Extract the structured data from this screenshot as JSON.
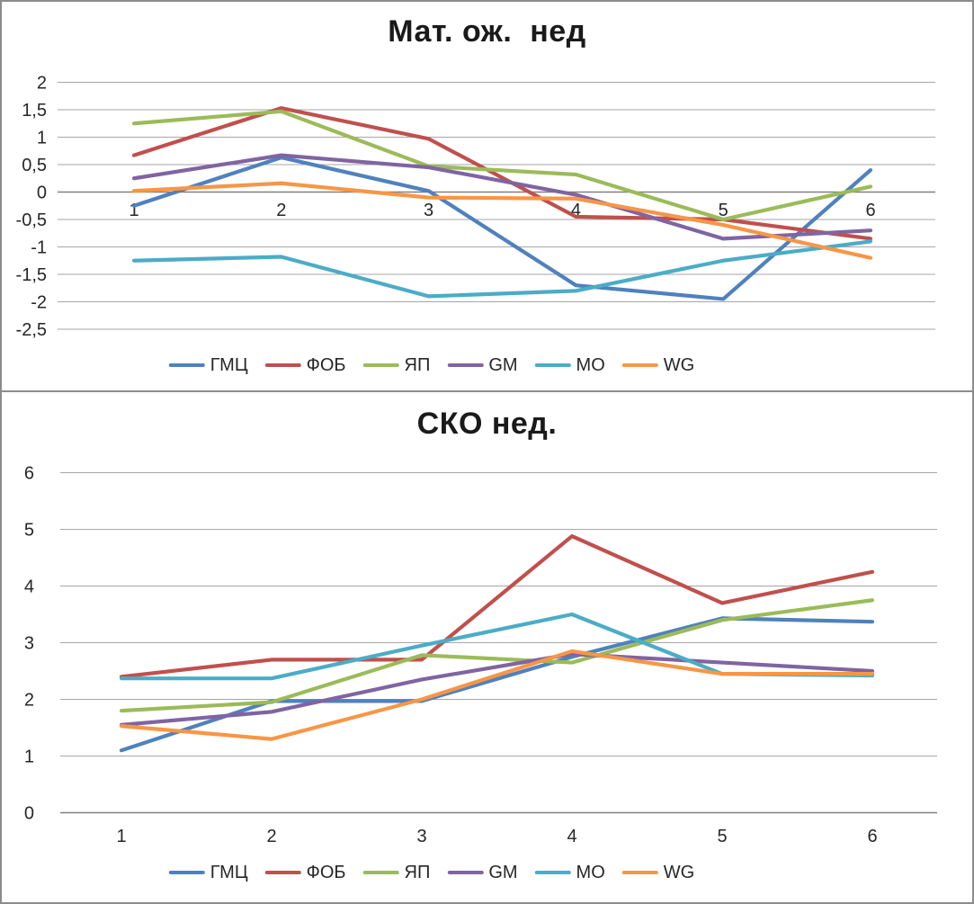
{
  "colors": {
    "grid": "#a6a6a6",
    "axis": "#808080",
    "tick_text": "#262626",
    "frame": "#8c8c8c",
    "background": "#ffffff"
  },
  "chart_data": [
    {
      "type": "line",
      "title": "Мат. ож.  нед",
      "xlabel": "",
      "ylabel": "",
      "categories": [
        "1",
        "2",
        "3",
        "4",
        "5",
        "6"
      ],
      "ylim": [
        -2.5,
        2
      ],
      "y_step": 0.5,
      "y_ticks": [
        "2",
        "1,5",
        "1",
        "0,5",
        "0",
        "-0,5",
        "-1",
        "-1,5",
        "-2",
        "-2,5"
      ],
      "grid": true,
      "legend_position": "bottom",
      "series": [
        {
          "name": "ГМЦ",
          "color": "#4F81BD",
          "values": [
            -0.25,
            0.63,
            0.02,
            -1.7,
            -1.95,
            0.4
          ]
        },
        {
          "name": "ФОБ",
          "color": "#C0504D",
          "values": [
            0.67,
            1.53,
            0.97,
            -0.45,
            -0.5,
            -0.85
          ]
        },
        {
          "name": "ЯП",
          "color": "#9BBB59",
          "values": [
            1.25,
            1.47,
            0.47,
            0.32,
            -0.5,
            0.1
          ]
        },
        {
          "name": "GM",
          "color": "#8064A2",
          "values": [
            0.25,
            0.67,
            0.45,
            -0.05,
            -0.85,
            -0.7
          ]
        },
        {
          "name": "МО",
          "color": "#4BACC6",
          "values": [
            -1.25,
            -1.18,
            -1.9,
            -1.8,
            -1.25,
            -0.9
          ]
        },
        {
          "name": "WG",
          "color": "#F79646",
          "values": [
            0.02,
            0.16,
            -0.1,
            -0.12,
            -0.6,
            -1.2
          ]
        }
      ]
    },
    {
      "type": "line",
      "title": "СКО нед.",
      "xlabel": "",
      "ylabel": "",
      "categories": [
        "1",
        "2",
        "3",
        "4",
        "5",
        "6"
      ],
      "ylim": [
        0,
        6
      ],
      "y_step": 1,
      "y_ticks": [
        "6",
        "5",
        "4",
        "3",
        "2",
        "1",
        "0"
      ],
      "grid": true,
      "legend_position": "bottom",
      "series": [
        {
          "name": "ГМЦ",
          "color": "#4F81BD",
          "values": [
            1.1,
            1.97,
            1.97,
            2.75,
            3.43,
            3.37
          ]
        },
        {
          "name": "ФОБ",
          "color": "#C0504D",
          "values": [
            2.4,
            2.7,
            2.7,
            4.88,
            3.7,
            4.25
          ]
        },
        {
          "name": "ЯП",
          "color": "#9BBB59",
          "values": [
            1.8,
            1.95,
            2.78,
            2.65,
            3.4,
            3.75
          ]
        },
        {
          "name": "GM",
          "color": "#8064A2",
          "values": [
            1.55,
            1.78,
            2.35,
            2.8,
            2.65,
            2.5
          ]
        },
        {
          "name": "МО",
          "color": "#4BACC6",
          "values": [
            2.37,
            2.37,
            2.95,
            3.5,
            2.45,
            2.42
          ]
        },
        {
          "name": "WG",
          "color": "#F79646",
          "values": [
            1.53,
            1.3,
            2.0,
            2.85,
            2.45,
            2.45
          ]
        }
      ]
    }
  ]
}
